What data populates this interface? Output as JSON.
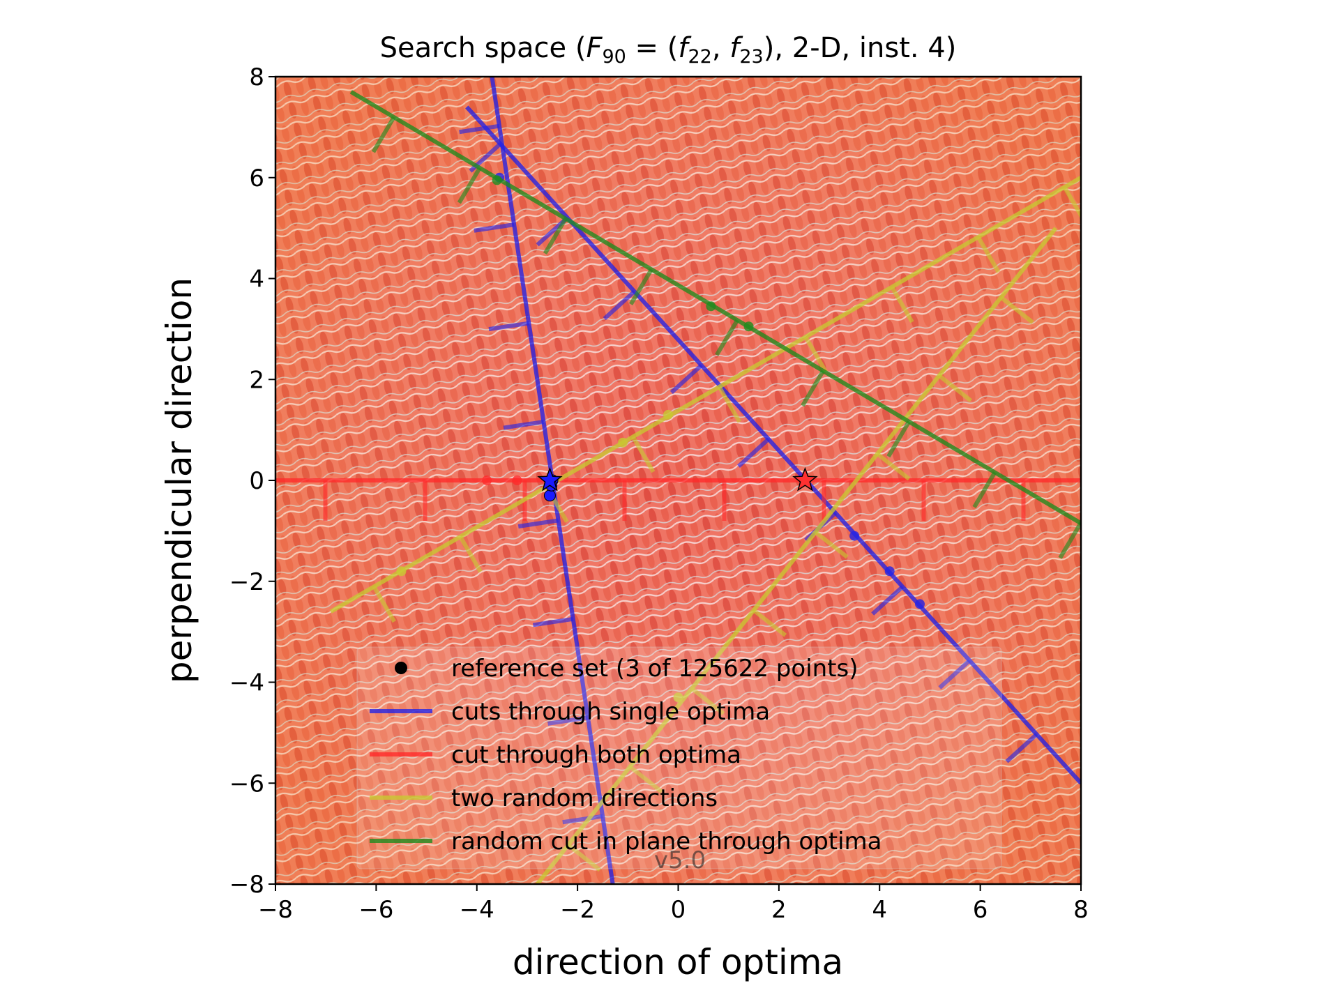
{
  "chart_data": {
    "type": "line",
    "title": {
      "prefix": "Search space (",
      "fname": "F",
      "fsub": "90",
      "eq": " = (",
      "f1": "f",
      "f1sub": "22",
      "comma": ", ",
      "f2": "f",
      "f2sub": "23",
      "suffix": "), 2-D, inst. 4)"
    },
    "xlabel": "direction of optima",
    "ylabel": "perpendicular direction",
    "xlim": [
      -8,
      8
    ],
    "ylim": [
      -8,
      8
    ],
    "xticks": [
      -8,
      -6,
      -4,
      -2,
      0,
      2,
      4,
      6,
      8
    ],
    "yticks": [
      -8,
      -6,
      -4,
      -2,
      0,
      2,
      4,
      6,
      8
    ],
    "xtick_labels": [
      "−8",
      "−6",
      "−4",
      "−2",
      "0",
      "2",
      "4",
      "6",
      "8"
    ],
    "ytick_labels": [
      "−8",
      "−6",
      "−4",
      "−2",
      "0",
      "2",
      "4",
      "6",
      "8"
    ],
    "watermark": "v5.0",
    "background": "colored heatmap (red/orange with light-blue ridges)",
    "legend_position": "lower-center",
    "series": [
      {
        "key": "ref",
        "name": "reference set (3 of 125622 points)",
        "kind": "points",
        "color": "#000000",
        "points": [
          [
            -2.55,
            -0.3
          ],
          [
            -2.5,
            0.0
          ],
          [
            -2.52,
            -0.1
          ]
        ]
      },
      {
        "key": "single",
        "name": "cuts through single optima",
        "kind": "lines",
        "color": "#2323e6",
        "lines": [
          [
            [
              -3.7,
              8.0
            ],
            [
              -1.3,
              -8.0
            ]
          ],
          [
            [
              -4.2,
              7.4
            ],
            [
              8.0,
              -6.0
            ]
          ]
        ],
        "dots": [
          [
            -3.55,
            6.0
          ],
          [
            3.5,
            -1.1
          ],
          [
            4.2,
            -1.8
          ],
          [
            4.8,
            -2.45
          ]
        ]
      },
      {
        "key": "both",
        "name": "cut through both optima",
        "kind": "lines",
        "color": "#ff2a2a",
        "lines": [
          [
            [
              -8.0,
              0.0
            ],
            [
              8.0,
              0.0
            ]
          ]
        ],
        "dots": [
          [
            -3.8,
            0.0
          ],
          [
            -3.2,
            0.0
          ]
        ]
      },
      {
        "key": "random",
        "name": "two random directions",
        "kind": "lines",
        "color": "#c8c832",
        "lines": [
          [
            [
              -6.9,
              -2.6
            ],
            [
              8.0,
              6.0
            ]
          ],
          [
            [
              -2.8,
              -8.0
            ],
            [
              7.5,
              5.0
            ]
          ]
        ],
        "dots": [
          [
            -5.5,
            -1.8
          ],
          [
            -1.1,
            0.75
          ],
          [
            -0.2,
            1.3
          ],
          [
            0.0,
            -4.3
          ]
        ]
      },
      {
        "key": "plane",
        "name": "random cut in plane through optima",
        "kind": "lines",
        "color": "#1e8c1e",
        "lines": [
          [
            [
              -6.5,
              7.7
            ],
            [
              8.0,
              -0.85
            ]
          ]
        ],
        "dots": [
          [
            -3.6,
            5.95
          ],
          [
            0.65,
            3.45
          ],
          [
            1.4,
            3.05
          ]
        ]
      }
    ],
    "optima": [
      {
        "x": -2.55,
        "y": 0.0,
        "color": "#1a1aff"
      },
      {
        "x": 2.52,
        "y": 0.0,
        "color": "#ff3030"
      }
    ]
  }
}
